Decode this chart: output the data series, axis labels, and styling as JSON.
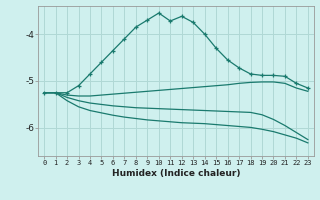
{
  "xlabel": "Humidex (Indice chaleur)",
  "background_color": "#cff0ee",
  "grid_color": "#b0d8d5",
  "line_color": "#1a7a6e",
  "xlim": [
    -0.5,
    23.5
  ],
  "ylim": [
    -6.6,
    -3.4
  ],
  "yticks": [
    -6,
    -5,
    -4
  ],
  "xticks": [
    0,
    1,
    2,
    3,
    4,
    5,
    6,
    7,
    8,
    9,
    10,
    11,
    12,
    13,
    14,
    15,
    16,
    17,
    18,
    19,
    20,
    21,
    22,
    23
  ],
  "line1_x": [
    0,
    1,
    2,
    3,
    4,
    5,
    6,
    7,
    8,
    9,
    10,
    11,
    12,
    13,
    14,
    15,
    16,
    17,
    18,
    19,
    20,
    21,
    22,
    23
  ],
  "line1_y": [
    -5.25,
    -5.25,
    -5.25,
    -5.1,
    -4.85,
    -4.6,
    -4.35,
    -4.1,
    -3.85,
    -3.7,
    -3.55,
    -3.72,
    -3.62,
    -3.75,
    -4.0,
    -4.3,
    -4.55,
    -4.72,
    -4.85,
    -4.88,
    -4.88,
    -4.9,
    -5.05,
    -5.15
  ],
  "line2_x": [
    0,
    1,
    2,
    3,
    4,
    5,
    6,
    7,
    8,
    9,
    10,
    11,
    12,
    13,
    14,
    15,
    16,
    17,
    18,
    19,
    20,
    21,
    22,
    23
  ],
  "line2_y": [
    -5.25,
    -5.25,
    -5.3,
    -5.32,
    -5.32,
    -5.3,
    -5.28,
    -5.26,
    -5.24,
    -5.22,
    -5.2,
    -5.18,
    -5.16,
    -5.14,
    -5.12,
    -5.1,
    -5.08,
    -5.05,
    -5.03,
    -5.02,
    -5.02,
    -5.05,
    -5.15,
    -5.22
  ],
  "line3_x": [
    0,
    1,
    2,
    3,
    4,
    5,
    6,
    7,
    8,
    9,
    10,
    11,
    12,
    13,
    14,
    15,
    16,
    17,
    18,
    19,
    20,
    21,
    22,
    23
  ],
  "line3_y": [
    -5.25,
    -5.25,
    -5.35,
    -5.42,
    -5.47,
    -5.5,
    -5.53,
    -5.55,
    -5.57,
    -5.58,
    -5.59,
    -5.6,
    -5.61,
    -5.62,
    -5.63,
    -5.64,
    -5.65,
    -5.66,
    -5.67,
    -5.72,
    -5.82,
    -5.95,
    -6.1,
    -6.25
  ],
  "line4_x": [
    0,
    1,
    2,
    3,
    4,
    5,
    6,
    7,
    8,
    9,
    10,
    11,
    12,
    13,
    14,
    15,
    16,
    17,
    18,
    19,
    20,
    21,
    22,
    23
  ],
  "line4_y": [
    -5.25,
    -5.25,
    -5.42,
    -5.55,
    -5.63,
    -5.68,
    -5.73,
    -5.77,
    -5.8,
    -5.83,
    -5.85,
    -5.87,
    -5.89,
    -5.9,
    -5.91,
    -5.93,
    -5.95,
    -5.97,
    -5.99,
    -6.03,
    -6.08,
    -6.15,
    -6.22,
    -6.32
  ]
}
